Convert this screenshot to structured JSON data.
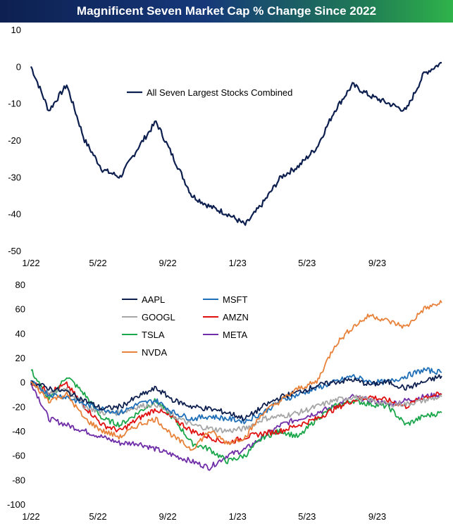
{
  "title": "Magnificent Seven Market Cap % Change Since 2022",
  "colors": {
    "combined": "#0d1f4f",
    "AAPL": "#0d1f4f",
    "MSFT": "#1f6fb8",
    "GOOGL": "#a6a6a6",
    "AMZN": "#e01010",
    "TSLA": "#1aa64a",
    "META": "#6f2da8",
    "NVDA": "#e8823a"
  },
  "chart_data": [
    {
      "type": "line",
      "title": "",
      "x_ticks": [
        "1/22",
        "5/22",
        "9/22",
        "1/23",
        "5/23",
        "9/23"
      ],
      "y_ticks": [
        10,
        0,
        -10,
        -20,
        -30,
        -40,
        -50
      ],
      "ylim": [
        -50,
        10
      ],
      "legend": "upper-center",
      "series": [
        {
          "name": "All Seven Largest Stocks Combined",
          "x": [
            "2022-01",
            "2022-02",
            "2022-03",
            "2022-04",
            "2022-05",
            "2022-06",
            "2022-07",
            "2022-08",
            "2022-09",
            "2022-10",
            "2022-11",
            "2022-12",
            "2023-01",
            "2023-02",
            "2023-03",
            "2023-04",
            "2023-05",
            "2023-06",
            "2023-07",
            "2023-08",
            "2023-09",
            "2023-10",
            "2023-11",
            "2023-12"
          ],
          "values": [
            0,
            -12,
            -5,
            -20,
            -28,
            -30,
            -22,
            -15,
            -25,
            -35,
            -38,
            -40,
            -43,
            -37,
            -30,
            -27,
            -22,
            -12,
            -5,
            -8,
            -10,
            -12,
            -2,
            1
          ]
        }
      ]
    },
    {
      "type": "line",
      "title": "",
      "x_ticks": [
        "1/22",
        "5/22",
        "9/22",
        "1/23",
        "5/23",
        "9/23"
      ],
      "y_ticks": [
        80,
        60,
        40,
        20,
        0,
        -20,
        -40,
        -60,
        -80,
        -100
      ],
      "ylim": [
        -100,
        80
      ],
      "legend": "upper-center",
      "x": [
        "2022-01",
        "2022-02",
        "2022-03",
        "2022-04",
        "2022-05",
        "2022-06",
        "2022-07",
        "2022-08",
        "2022-09",
        "2022-10",
        "2022-11",
        "2022-12",
        "2023-01",
        "2023-02",
        "2023-03",
        "2023-04",
        "2023-05",
        "2023-06",
        "2023-07",
        "2023-08",
        "2023-09",
        "2023-10",
        "2023-11",
        "2023-12"
      ],
      "series": [
        {
          "name": "AAPL",
          "values": [
            0,
            -5,
            -8,
            -15,
            -22,
            -20,
            -12,
            -5,
            -15,
            -20,
            -22,
            -25,
            -30,
            -20,
            -12,
            -8,
            -3,
            0,
            2,
            -2,
            0,
            -5,
            0,
            5
          ]
        },
        {
          "name": "MSFT",
          "values": [
            0,
            -10,
            -12,
            -18,
            -22,
            -25,
            -18,
            -15,
            -25,
            -30,
            -28,
            -30,
            -32,
            -25,
            -15,
            -10,
            -5,
            0,
            5,
            0,
            0,
            5,
            10,
            8
          ]
        },
        {
          "name": "GOOGL",
          "values": [
            0,
            -10,
            -5,
            -20,
            -25,
            -25,
            -20,
            -18,
            -28,
            -35,
            -38,
            -40,
            -38,
            -30,
            -28,
            -25,
            -20,
            -15,
            -12,
            -15,
            -18,
            -18,
            -15,
            -12
          ]
        },
        {
          "name": "AMZN",
          "values": [
            0,
            -8,
            -2,
            -20,
            -35,
            -40,
            -30,
            -22,
            -30,
            -40,
            -45,
            -50,
            -45,
            -42,
            -40,
            -35,
            -30,
            -22,
            -15,
            -12,
            -15,
            -20,
            -12,
            -10
          ]
        },
        {
          "name": "TSLA",
          "values": [
            10,
            -15,
            5,
            -10,
            -30,
            -35,
            -25,
            -15,
            -30,
            -50,
            -55,
            -65,
            -60,
            -45,
            -40,
            -45,
            -30,
            -20,
            -15,
            -18,
            -20,
            -35,
            -28,
            -25
          ]
        },
        {
          "name": "META",
          "values": [
            0,
            -30,
            -35,
            -40,
            -45,
            -50,
            -50,
            -55,
            -60,
            -65,
            -70,
            -60,
            -55,
            -45,
            -35,
            -30,
            -25,
            -20,
            -12,
            -15,
            -18,
            -15,
            -12,
            -10
          ]
        },
        {
          "name": "NVDA",
          "values": [
            0,
            -15,
            -10,
            -30,
            -40,
            -45,
            -35,
            -30,
            -45,
            -55,
            -40,
            -50,
            -45,
            -25,
            -15,
            -5,
            0,
            30,
            45,
            55,
            50,
            45,
            60,
            65
          ]
        }
      ]
    }
  ]
}
